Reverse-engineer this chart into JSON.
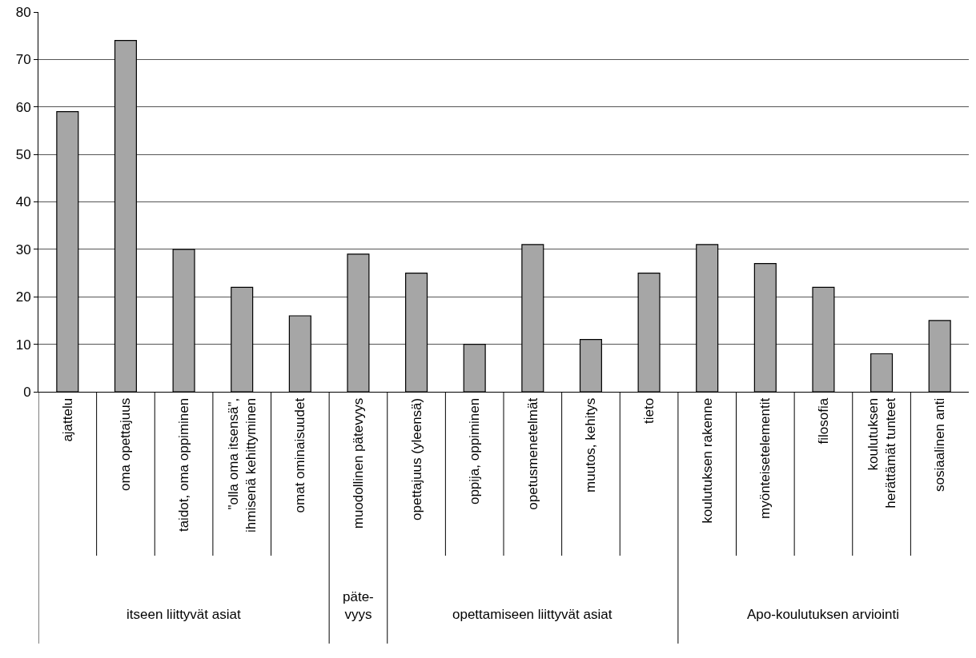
{
  "chart_data": {
    "type": "bar",
    "categories": [
      "ajattelu",
      "oma opettajuus",
      "taidot, oma oppiminen",
      "\"olla oma itsensä\",\nihmisenä kehittyminen",
      "omat ominaisuudet",
      "muodollinen pätevyys",
      "opettajuus (yleensä)",
      "oppija, oppiminen",
      "opetusmenetelmät",
      "muutos, kehitys",
      "tieto",
      "koulutuksen rakenne",
      "myönteisetelementit",
      "filosofia",
      "koulutuksen\nherättämät tunteet",
      "sosiaalinen anti"
    ],
    "values": [
      59,
      74,
      30,
      22,
      16,
      29,
      25,
      10,
      31,
      11,
      25,
      31,
      27,
      22,
      8,
      15
    ],
    "color": "#a6a6a6",
    "ylim": [
      0,
      80
    ],
    "yticks": [
      0,
      10,
      20,
      30,
      40,
      50,
      60,
      70,
      80
    ],
    "grid": "y",
    "annotations": [
      "itseen liittyvät asiat",
      "päte-\nvyys",
      "opettamiseen liittyvät asiat",
      "Apo-koulutuksen arviointi"
    ]
  }
}
